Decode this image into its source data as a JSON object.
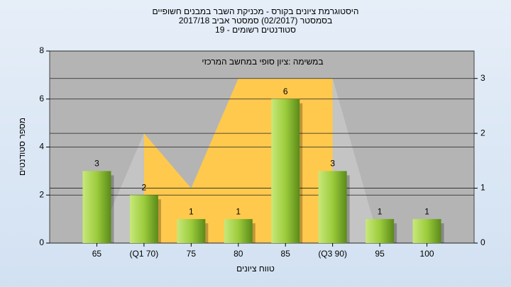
{
  "chart_data": {
    "type": "bar",
    "title": "היסטוגרמת ציונים בקורס - מכניקת השבר במבנים חשופיים",
    "subtitle": "בסמסטר  (02/2017)  סמסטר אביב 2017/18",
    "subtitle2": "סטודנטים רשומים - 19",
    "annotation": "במשימה :ציון סופי במחשב המרכזי",
    "x_label": "טווח ציונים",
    "y_label": "מספר סטודנטים",
    "categories": [
      "65",
      "(Q1 70)",
      "75",
      "80",
      "85",
      "(Q3 90)",
      "95",
      "100"
    ],
    "series": [
      {
        "type": "bar",
        "color": "#9ccc3c",
        "values": [
          3,
          2,
          1,
          1,
          6,
          3,
          1,
          1
        ]
      },
      {
        "type": "area",
        "axis": "y2",
        "color": "#c4c4c4",
        "values": [
          0,
          2,
          null,
          null,
          null,
          3,
          0,
          null
        ]
      },
      {
        "type": "area",
        "axis": "y2",
        "color": "#ffc94d",
        "values": [
          null,
          2,
          1,
          3,
          3,
          3,
          null,
          null
        ]
      }
    ],
    "ylim": [
      0,
      8
    ],
    "yticks": [
      0,
      2,
      4,
      6,
      8
    ],
    "y2lim": [
      0,
      3.5
    ],
    "y2ticks": [
      0,
      1,
      2,
      3
    ],
    "grid": true
  }
}
